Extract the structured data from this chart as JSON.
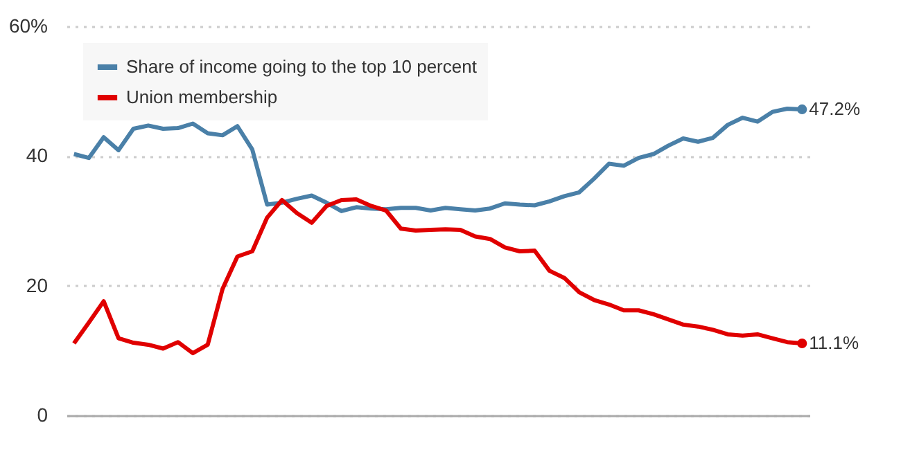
{
  "chart_data": {
    "type": "line",
    "categories": [
      null,
      null,
      null,
      null,
      null,
      null,
      null,
      null,
      null,
      null,
      null,
      null,
      null,
      null,
      null,
      null,
      null,
      null,
      null,
      null,
      null,
      null,
      null,
      null,
      null,
      null,
      null,
      null,
      null,
      null,
      null,
      null,
      null,
      null,
      null,
      null,
      null,
      null,
      null,
      null,
      null,
      null,
      null,
      null,
      null,
      null,
      null,
      null,
      null,
      null
    ],
    "series": [
      {
        "name": "Share of income going to the top 10 percent",
        "color": "#4a80a8",
        "values": [
          40.3,
          39.7,
          42.9,
          40.9,
          44.2,
          44.7,
          44.2,
          44.3,
          45.0,
          43.5,
          43.2,
          44.6,
          41.0,
          32.5,
          32.8,
          33.4,
          33.9,
          32.8,
          31.5,
          32.1,
          31.9,
          31.8,
          32.0,
          32.0,
          31.6,
          32.0,
          31.8,
          31.6,
          31.9,
          32.7,
          32.5,
          32.4,
          33.0,
          33.8,
          34.4,
          36.5,
          38.8,
          38.5,
          39.7,
          40.3,
          41.6,
          42.7,
          42.2,
          42.8,
          44.8,
          45.9,
          45.3,
          46.8,
          47.3,
          47.2
        ],
        "value_labels": [
          null,
          null,
          null,
          null,
          null,
          null,
          null,
          null,
          null,
          null,
          null,
          null,
          null,
          null,
          null,
          null,
          null,
          null,
          null,
          null,
          null,
          null,
          null,
          null,
          null,
          null,
          null,
          null,
          null,
          null,
          null,
          null,
          null,
          null,
          null,
          null,
          null,
          null,
          null,
          null,
          null,
          null,
          null,
          null,
          null,
          null,
          null,
          null,
          null,
          "47.2%"
        ]
      },
      {
        "name": "Union membership",
        "color": "#e00000",
        "values": [
          11.1,
          14.3,
          17.6,
          11.9,
          11.2,
          10.9,
          10.3,
          11.3,
          9.6,
          10.9,
          19.5,
          24.5,
          25.3,
          30.5,
          33.2,
          31.2,
          29.7,
          32.3,
          33.2,
          33.3,
          32.3,
          31.6,
          28.8,
          28.5,
          28.6,
          28.7,
          28.6,
          27.6,
          27.2,
          25.9,
          25.3,
          25.4,
          22.3,
          21.2,
          19.0,
          17.8,
          17.1,
          16.2,
          16.2,
          15.6,
          14.8,
          14.0,
          13.7,
          13.2,
          12.5,
          12.3,
          12.5,
          11.9,
          11.3,
          11.1
        ],
        "value_labels": [
          null,
          null,
          null,
          null,
          null,
          null,
          null,
          null,
          null,
          null,
          null,
          null,
          null,
          null,
          null,
          null,
          null,
          null,
          null,
          null,
          null,
          null,
          null,
          null,
          null,
          null,
          null,
          null,
          null,
          null,
          null,
          null,
          null,
          null,
          null,
          null,
          null,
          null,
          null,
          null,
          null,
          null,
          null,
          null,
          null,
          null,
          null,
          null,
          null,
          "11.1%"
        ]
      }
    ],
    "ylim": [
      0,
      60
    ],
    "yticks": [
      0,
      20,
      40,
      {
        "value": 60,
        "label": "60%"
      }
    ],
    "grid": "y",
    "legend": "top left",
    "tick_labels": "y",
    "line_style": "solid"
  }
}
